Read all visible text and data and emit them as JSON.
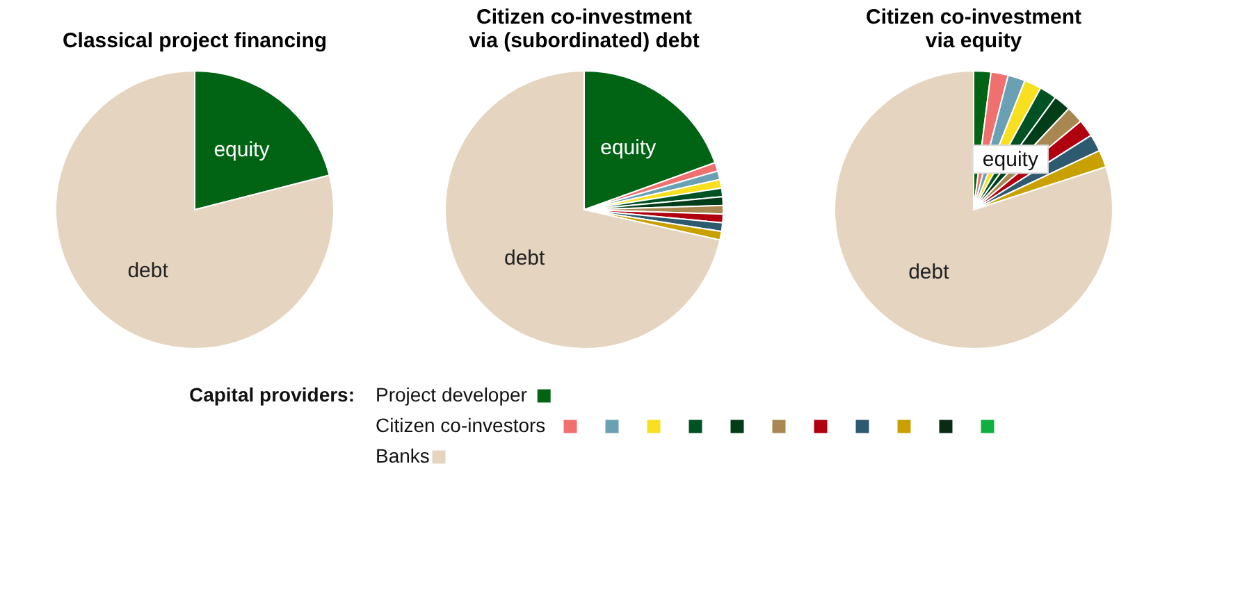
{
  "chart_data": [
    {
      "type": "pie",
      "title": "Classical project financing",
      "categories": [
        "equity",
        "debt"
      ],
      "values": [
        21,
        79
      ],
      "colors": [
        "#006414",
        "#e5d5c0"
      ]
    },
    {
      "type": "pie",
      "title": "Citizen co-investment\nvia (subordinated) debt",
      "categories": [
        "equity",
        null,
        null,
        null,
        null,
        null,
        null,
        null,
        null,
        null,
        "debt"
      ],
      "values": [
        19.5,
        1,
        1,
        1,
        1,
        1,
        1,
        1,
        1,
        1,
        71.5
      ],
      "colors": [
        "#006414",
        "#f07070",
        "#6aa0b4",
        "#f8e020",
        "#005224",
        "#003d18",
        "#a88850",
        "#b00010",
        "#2e5a70",
        "#c8a000",
        "#e5d5c0"
      ]
    },
    {
      "type": "pie",
      "title": "Citizen co-investment\nvia equity",
      "categories": [
        null,
        null,
        null,
        null,
        null,
        null,
        null,
        null,
        null,
        null,
        "debt"
      ],
      "values": [
        2,
        2,
        2,
        2,
        2,
        2,
        2,
        2,
        2,
        2,
        80
      ],
      "colors": [
        "#006414",
        "#f07070",
        "#6aa0b4",
        "#f8e020",
        "#005224",
        "#003d18",
        "#a88850",
        "#b00010",
        "#2e5a70",
        "#c8a000",
        "#e5d5c0"
      ],
      "annotations": [
        "equity"
      ]
    },
    {
      "type": "other",
      "legend_title": "Capital providers:",
      "series": [
        {
          "name": "Project developer",
          "color": "#006414"
        },
        {
          "name": "Citizen co-investors",
          "color": "#f07070"
        },
        {
          "color": "#6aa0b4"
        },
        {
          "color": "#f8e020"
        },
        {
          "color": "#005224"
        },
        {
          "color": "#003d18"
        },
        {
          "color": "#a88850"
        },
        {
          "color": "#b00010"
        },
        {
          "color": "#2e5a70"
        },
        {
          "color": "#c8a000"
        },
        {
          "color": "#0a2a14"
        },
        {
          "color": "#10b040"
        },
        {
          "name": "Banks",
          "color": "#e5d5c0"
        }
      ]
    }
  ]
}
